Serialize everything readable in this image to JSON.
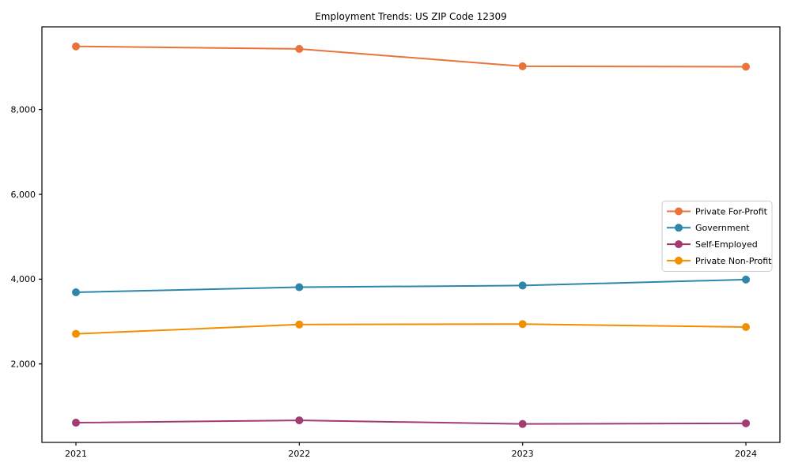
{
  "chart_data": {
    "type": "line",
    "title": "Employment Trends: US ZIP Code 12309",
    "xlabel": "",
    "ylabel": "",
    "x": [
      2021,
      2022,
      2023,
      2024
    ],
    "xtick_labels": [
      "2021",
      "2022",
      "2023",
      "2024"
    ],
    "yticks": [
      2000,
      4000,
      6000,
      8000
    ],
    "ytick_labels": [
      "2,000",
      "4,000",
      "6,000",
      "8,000"
    ],
    "ylim": [
      150,
      9950
    ],
    "grid": false,
    "marker": "circle",
    "legend_position": "center right",
    "series": [
      {
        "name": "Private For-Profit",
        "color": "#E8743B",
        "values": [
          9490,
          9430,
          9020,
          9010
        ]
      },
      {
        "name": "Government",
        "color": "#2E86AB",
        "values": [
          3690,
          3810,
          3850,
          3990
        ]
      },
      {
        "name": "Self-Employed",
        "color": "#A23B72",
        "values": [
          615,
          670,
          585,
          600
        ]
      },
      {
        "name": "Private Non-Profit",
        "color": "#F18F01",
        "values": [
          2710,
          2930,
          2940,
          2870
        ]
      }
    ],
    "axis_color": "#000000",
    "legend_border_color": "#cccccc",
    "background_color": "#ffffff"
  }
}
